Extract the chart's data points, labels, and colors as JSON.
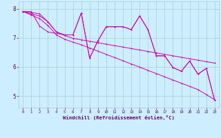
{
  "bg_color": "#cceeff",
  "line_color": "#cc00aa",
  "grid_color": "#aacccc",
  "xlabel": "Windchill (Refroidissement éolien,°C)",
  "xlabel_color": "#660066",
  "tick_color": "#660066",
  "ylim": [
    4.6,
    8.25
  ],
  "xlim": [
    -0.5,
    23.5
  ],
  "yticks": [
    5,
    6,
    7,
    8
  ],
  "xticks": [
    0,
    1,
    2,
    3,
    4,
    5,
    6,
    7,
    8,
    9,
    10,
    11,
    12,
    13,
    14,
    15,
    16,
    17,
    18,
    19,
    20,
    21,
    22,
    23
  ],
  "s1": [
    7.9,
    7.9,
    7.4,
    7.2,
    7.15,
    7.1,
    7.1,
    7.85,
    6.3,
    6.9,
    7.38,
    7.38,
    7.38,
    7.28,
    7.75,
    7.28,
    6.38,
    6.38,
    5.98,
    5.85,
    6.2,
    5.75,
    5.95,
    4.85
  ],
  "s2": [
    7.9,
    7.87,
    7.82,
    7.55,
    7.2,
    7.1,
    7.1,
    7.85,
    6.3,
    6.9,
    7.38,
    7.38,
    7.38,
    7.28,
    7.75,
    7.28,
    6.38,
    6.38,
    5.98,
    5.85,
    6.2,
    5.75,
    5.95,
    4.85
  ],
  "s3": [
    7.9,
    7.82,
    7.75,
    7.55,
    7.2,
    7.08,
    6.98,
    6.93,
    6.88,
    6.83,
    6.78,
    6.73,
    6.68,
    6.63,
    6.58,
    6.53,
    6.48,
    6.43,
    6.38,
    6.33,
    6.28,
    6.23,
    6.18,
    6.13
  ],
  "s4": [
    7.9,
    7.78,
    7.66,
    7.42,
    7.1,
    6.95,
    6.85,
    6.76,
    6.65,
    6.54,
    6.43,
    6.32,
    6.21,
    6.1,
    5.99,
    5.88,
    5.77,
    5.66,
    5.55,
    5.44,
    5.33,
    5.22,
    5.05,
    4.87
  ]
}
